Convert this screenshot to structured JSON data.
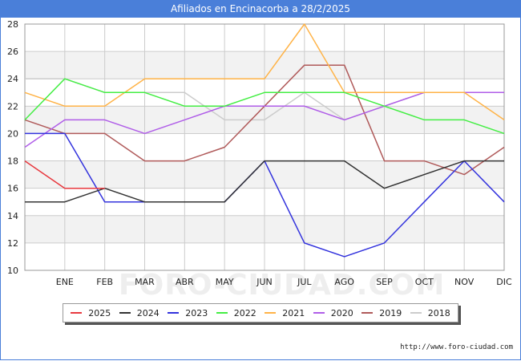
{
  "header": {
    "title": "Afiliados en Encinacorba a 28/2/2025"
  },
  "watermark": "FORO-CIUDAD.COM",
  "footer": {
    "url": "http://www.foro-ciudad.com"
  },
  "colors": {
    "title_bg": "#4a7fd9",
    "grid": "#cccccc",
    "band": "#f2f2f2"
  },
  "chart_data": {
    "type": "line",
    "title": "Afiliados en Encinacorba a 28/2/2025",
    "xlabel": "",
    "ylabel": "",
    "ylim": [
      10,
      28
    ],
    "yticks": [
      10,
      12,
      14,
      16,
      18,
      20,
      22,
      24,
      26,
      28
    ],
    "x": [
      "",
      "ENE",
      "FEB",
      "MAR",
      "ABR",
      "MAY",
      "JUN",
      "JUL",
      "AGO",
      "SEP",
      "OCT",
      "NOV",
      "DIC"
    ],
    "legend_position": "bottom",
    "grid": true,
    "series": [
      {
        "name": "2025",
        "color": "#e8393f",
        "values": [
          18,
          16,
          16,
          null,
          null,
          null,
          null,
          null,
          null,
          null,
          null,
          null,
          null
        ]
      },
      {
        "name": "2024",
        "color": "#333333",
        "values": [
          15,
          15,
          16,
          15,
          15,
          15,
          18,
          18,
          18,
          16,
          17,
          18,
          18
        ]
      },
      {
        "name": "2023",
        "color": "#3333dd",
        "values": [
          20,
          20,
          15,
          15,
          15,
          15,
          18,
          12,
          11,
          12,
          15,
          18,
          15
        ]
      },
      {
        "name": "2022",
        "color": "#44ee44",
        "values": [
          21,
          24,
          23,
          23,
          22,
          22,
          23,
          23,
          23,
          22,
          21,
          21,
          20
        ]
      },
      {
        "name": "2021",
        "color": "#ffb347",
        "values": [
          23,
          22,
          22,
          24,
          24,
          24,
          24,
          28,
          23,
          23,
          23,
          23,
          21
        ]
      },
      {
        "name": "2020",
        "color": "#b05ee8",
        "values": [
          19,
          21,
          21,
          20,
          21,
          22,
          22,
          22,
          21,
          22,
          23,
          23,
          23
        ]
      },
      {
        "name": "2019",
        "color": "#b05a5a",
        "values": [
          21,
          20,
          20,
          18,
          18,
          19,
          22,
          25,
          25,
          18,
          18,
          17,
          19
        ]
      },
      {
        "name": "2018",
        "color": "#cccccc",
        "values": [
          24,
          24,
          23,
          23,
          23,
          21,
          21,
          23,
          21,
          22,
          23,
          23,
          23
        ]
      }
    ]
  }
}
